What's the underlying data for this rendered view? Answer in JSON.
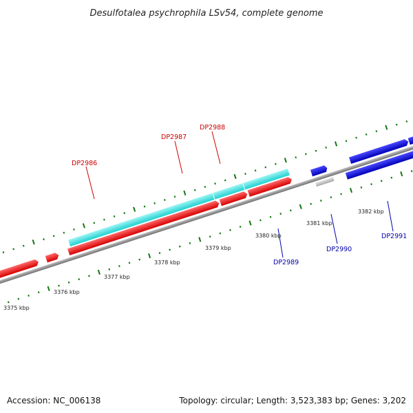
{
  "title": "Desulfotalea psychrophila LSv54, complete genome",
  "footer": {
    "accession": "Accession: NC_006138",
    "summary": "Topology: circular; Length: 3,523,383 bp; Genes: 3,202"
  },
  "axis": {
    "unit": "kbp",
    "labels": [
      "3375 kbp",
      "3376 kbp",
      "3377 kbp",
      "3378 kbp",
      "3379 kbp",
      "3380 kbp",
      "3381 kbp",
      "3382 kbp"
    ]
  },
  "genes": [
    {
      "id": "DP2986",
      "strand": "reverse",
      "color": "#ee0000",
      "label_color": "#cc0000"
    },
    {
      "id": "DP2987",
      "strand": "reverse",
      "color": "#ee0000",
      "label_color": "#cc0000"
    },
    {
      "id": "DP2988",
      "strand": "reverse",
      "color": "#ee0000",
      "label_color": "#cc0000"
    },
    {
      "id": "DP2989",
      "strand": "forward",
      "color": "#0000dd",
      "label_color": "#0000aa"
    },
    {
      "id": "DP2990",
      "strand": "forward",
      "color": "#0000dd",
      "label_color": "#0000aa"
    },
    {
      "id": "DP2991",
      "strand": "forward",
      "color": "#0000dd",
      "label_color": "#0000aa"
    }
  ],
  "colors": {
    "reverse_gene": "#ee0000",
    "forward_gene": "#0000dd",
    "reverse_cds": "#22dddd",
    "forward_cds": "#0000dd",
    "unknown_feature": "#bbbbbb",
    "backbone": "#888888",
    "tick": "#117711"
  }
}
